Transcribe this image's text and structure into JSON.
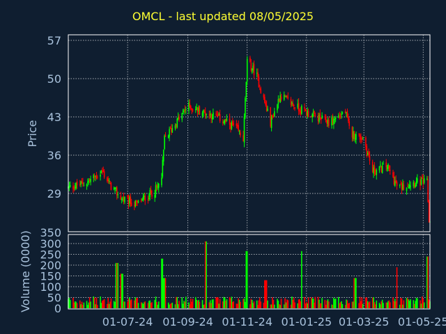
{
  "chart_data": {
    "type": "candlestick",
    "title": "OMCL - last updated 08/05/2025",
    "price_panel": {
      "ylabel": "Price",
      "y_ticks": [
        "57",
        "50",
        "43",
        "36",
        "29"
      ],
      "y_tick_values": [
        57,
        50,
        43,
        36,
        29
      ],
      "ylim": [
        22,
        57
      ],
      "grid": true
    },
    "volume_panel": {
      "ylabel": "Volume (0000)",
      "y_ticks": [
        "350",
        "300",
        "250",
        "200",
        "150",
        "100",
        "50",
        "0"
      ],
      "y_tick_values": [
        350,
        300,
        250,
        200,
        150,
        100,
        50,
        0
      ],
      "ylim": [
        0,
        350
      ],
      "grid": true
    },
    "x_ticks": [
      "01-07-24",
      "01-09-24",
      "01-11-24",
      "01-01-25",
      "01-03-25",
      "01-05-25"
    ],
    "up_color": "#00ff00",
    "down_color": "#ff0000",
    "price_anchors": [
      {
        "date": "2024-05-01",
        "close": 30
      },
      {
        "date": "2024-05-20",
        "close": 31
      },
      {
        "date": "2024-06-05",
        "close": 33
      },
      {
        "date": "2024-06-15",
        "close": 30
      },
      {
        "date": "2024-06-25",
        "close": 28
      },
      {
        "date": "2024-07-10",
        "close": 27
      },
      {
        "date": "2024-07-25",
        "close": 29
      },
      {
        "date": "2024-08-01",
        "close": 30
      },
      {
        "date": "2024-08-05",
        "close": 32
      },
      {
        "date": "2024-08-08",
        "close": 39
      },
      {
        "date": "2024-08-20",
        "close": 42
      },
      {
        "date": "2024-09-01",
        "close": 45
      },
      {
        "date": "2024-09-15",
        "close": 44
      },
      {
        "date": "2024-10-01",
        "close": 43
      },
      {
        "date": "2024-10-20",
        "close": 41
      },
      {
        "date": "2024-10-28",
        "close": 39
      },
      {
        "date": "2024-11-01",
        "close": 53
      },
      {
        "date": "2024-11-10",
        "close": 51
      },
      {
        "date": "2024-11-25",
        "close": 42
      },
      {
        "date": "2024-12-05",
        "close": 47
      },
      {
        "date": "2024-12-20",
        "close": 45
      },
      {
        "date": "2025-01-10",
        "close": 43
      },
      {
        "date": "2025-01-25",
        "close": 42
      },
      {
        "date": "2025-02-10",
        "close": 44
      },
      {
        "date": "2025-02-15",
        "close": 40
      },
      {
        "date": "2025-03-01",
        "close": 39
      },
      {
        "date": "2025-03-10",
        "close": 33
      },
      {
        "date": "2025-03-25",
        "close": 34
      },
      {
        "date": "2025-04-05",
        "close": 30
      },
      {
        "date": "2025-04-20",
        "close": 31
      },
      {
        "date": "2025-05-05",
        "close": 31
      },
      {
        "date": "2025-05-07",
        "close": 24
      }
    ],
    "volume_spikes": [
      {
        "date": "2024-06-20",
        "value": 210,
        "direction": "down"
      },
      {
        "date": "2024-06-25",
        "value": 160,
        "direction": "up"
      },
      {
        "date": "2024-08-05",
        "value": 230,
        "direction": "up"
      },
      {
        "date": "2024-08-08",
        "value": 140,
        "direction": "up"
      },
      {
        "date": "2024-09-20",
        "value": 310,
        "direction": "up"
      },
      {
        "date": "2024-11-01",
        "value": 265,
        "direction": "up"
      },
      {
        "date": "2024-11-20",
        "value": 130,
        "direction": "down"
      },
      {
        "date": "2024-12-28",
        "value": 265,
        "direction": "up"
      },
      {
        "date": "2025-02-20",
        "value": 140,
        "direction": "down"
      },
      {
        "date": "2025-04-05",
        "value": 190,
        "direction": "down"
      },
      {
        "date": "2025-05-05",
        "value": 240,
        "direction": "up"
      }
    ]
  }
}
